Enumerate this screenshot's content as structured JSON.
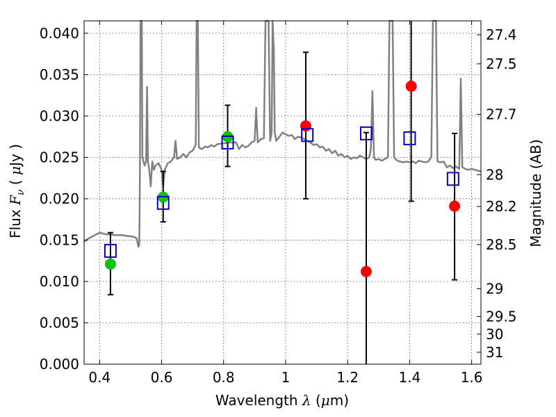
{
  "chart_data": {
    "type": "scatter",
    "xlabel": "Wavelength  λ (μm)",
    "ylabel": "Flux  Fν  ( μJy )",
    "y2label": "Magnitude (AB)",
    "xlim": [
      0.35,
      1.63
    ],
    "ylim": [
      0.0,
      0.0415
    ],
    "grid": true,
    "x_ticks": [
      {
        "value": 0.4,
        "label": "0.4"
      },
      {
        "value": 0.6,
        "label": "0.6"
      },
      {
        "value": 0.8,
        "label": "0.8"
      },
      {
        "value": 1.0,
        "label": "1"
      },
      {
        "value": 1.2,
        "label": "1.2"
      },
      {
        "value": 1.4,
        "label": "1.4"
      },
      {
        "value": 1.6,
        "label": "1.6"
      }
    ],
    "y_ticks": [
      {
        "value": 0.0,
        "label": "0.000"
      },
      {
        "value": 0.005,
        "label": "0.005"
      },
      {
        "value": 0.01,
        "label": "0.010"
      },
      {
        "value": 0.015,
        "label": "0.015"
      },
      {
        "value": 0.02,
        "label": "0.020"
      },
      {
        "value": 0.025,
        "label": "0.025"
      },
      {
        "value": 0.03,
        "label": "0.030"
      },
      {
        "value": 0.035,
        "label": "0.035"
      },
      {
        "value": 0.04,
        "label": "0.040"
      }
    ],
    "y2_ticks": [
      {
        "mag": 27.4,
        "label": "27.4"
      },
      {
        "mag": 27.5,
        "label": "27.5"
      },
      {
        "mag": 27.7,
        "label": "27.7"
      },
      {
        "mag": 28.0,
        "label": "28"
      },
      {
        "mag": 28.2,
        "label": "28.2"
      },
      {
        "mag": 28.5,
        "label": "28.5"
      },
      {
        "mag": 29.0,
        "label": "29"
      },
      {
        "mag": 29.5,
        "label": "29.5"
      },
      {
        "mag": 30.0,
        "label": "30"
      },
      {
        "mag": 31.0,
        "label": "31"
      }
    ],
    "series": [
      {
        "kind": "line",
        "color": "#808080",
        "points": [
          [
            0.35,
            0.0148
          ],
          [
            0.36,
            0.0151
          ],
          [
            0.37,
            0.0153
          ],
          [
            0.38,
            0.0155
          ],
          [
            0.39,
            0.0157
          ],
          [
            0.4,
            0.0159
          ],
          [
            0.41,
            0.0158
          ],
          [
            0.42,
            0.0157
          ],
          [
            0.43,
            0.0157
          ],
          [
            0.45,
            0.0156
          ],
          [
            0.47,
            0.0156
          ],
          [
            0.49,
            0.0155
          ],
          [
            0.51,
            0.0154
          ],
          [
            0.52,
            0.0152
          ],
          [
            0.525,
            0.0142
          ],
          [
            0.528,
            0.0145
          ],
          [
            0.53,
            0.0225
          ],
          [
            0.532,
            0.0415
          ],
          [
            0.536,
            0.0415
          ],
          [
            0.538,
            0.025
          ],
          [
            0.545,
            0.024
          ],
          [
            0.55,
            0.0245
          ],
          [
            0.553,
            0.0335
          ],
          [
            0.556,
            0.0245
          ],
          [
            0.56,
            0.0235
          ],
          [
            0.565,
            0.0215
          ],
          [
            0.57,
            0.0245
          ],
          [
            0.575,
            0.0235
          ],
          [
            0.58,
            0.024
          ],
          [
            0.59,
            0.0243
          ],
          [
            0.6,
            0.0235
          ],
          [
            0.605,
            0.0215
          ],
          [
            0.61,
            0.0235
          ],
          [
            0.62,
            0.0243
          ],
          [
            0.63,
            0.0245
          ],
          [
            0.64,
            0.025
          ],
          [
            0.645,
            0.027
          ],
          [
            0.65,
            0.0248
          ],
          [
            0.66,
            0.025
          ],
          [
            0.67,
            0.0254
          ],
          [
            0.68,
            0.025
          ],
          [
            0.69,
            0.0256
          ],
          [
            0.7,
            0.0258
          ],
          [
            0.71,
            0.0265
          ],
          [
            0.713,
            0.0415
          ],
          [
            0.717,
            0.0415
          ],
          [
            0.72,
            0.0262
          ],
          [
            0.73,
            0.026
          ],
          [
            0.74,
            0.0263
          ],
          [
            0.75,
            0.0262
          ],
          [
            0.76,
            0.0265
          ],
          [
            0.77,
            0.0263
          ],
          [
            0.78,
            0.0266
          ],
          [
            0.8,
            0.0267
          ],
          [
            0.82,
            0.0268
          ],
          [
            0.84,
            0.0268
          ],
          [
            0.85,
            0.026
          ],
          [
            0.86,
            0.0265
          ],
          [
            0.87,
            0.0262
          ],
          [
            0.88,
            0.0264
          ],
          [
            0.89,
            0.0268
          ],
          [
            0.9,
            0.027
          ],
          [
            0.905,
            0.031
          ],
          [
            0.91,
            0.0268
          ],
          [
            0.92,
            0.0272
          ],
          [
            0.93,
            0.0273
          ],
          [
            0.935,
            0.0415
          ],
          [
            0.945,
            0.0415
          ],
          [
            0.95,
            0.027
          ],
          [
            0.955,
            0.028
          ],
          [
            0.958,
            0.0415
          ],
          [
            0.962,
            0.038
          ],
          [
            0.965,
            0.028
          ],
          [
            0.97,
            0.027
          ],
          [
            0.98,
            0.0275
          ],
          [
            0.99,
            0.028
          ],
          [
            1.0,
            0.0278
          ],
          [
            1.01,
            0.0276
          ],
          [
            1.02,
            0.0277
          ],
          [
            1.03,
            0.0272
          ],
          [
            1.04,
            0.0275
          ],
          [
            1.05,
            0.0274
          ],
          [
            1.06,
            0.0272
          ],
          [
            1.07,
            0.027
          ],
          [
            1.08,
            0.0268
          ],
          [
            1.09,
            0.0265
          ],
          [
            1.1,
            0.0266
          ],
          [
            1.11,
            0.0262
          ],
          [
            1.12,
            0.0263
          ],
          [
            1.13,
            0.0258
          ],
          [
            1.14,
            0.026
          ],
          [
            1.15,
            0.0255
          ],
          [
            1.16,
            0.0258
          ],
          [
            1.17,
            0.0252
          ],
          [
            1.18,
            0.0254
          ],
          [
            1.19,
            0.025
          ],
          [
            1.2,
            0.0252
          ],
          [
            1.21,
            0.0248
          ],
          [
            1.22,
            0.025
          ],
          [
            1.23,
            0.0249
          ],
          [
            1.24,
            0.0252
          ],
          [
            1.25,
            0.025
          ],
          [
            1.26,
            0.0248
          ],
          [
            1.27,
            0.025
          ],
          [
            1.275,
            0.026
          ],
          [
            1.28,
            0.033
          ],
          [
            1.285,
            0.025
          ],
          [
            1.29,
            0.0247
          ],
          [
            1.3,
            0.0248
          ],
          [
            1.31,
            0.0246
          ],
          [
            1.32,
            0.0248
          ],
          [
            1.33,
            0.025
          ],
          [
            1.335,
            0.0415
          ],
          [
            1.345,
            0.0415
          ],
          [
            1.35,
            0.025
          ],
          [
            1.36,
            0.0246
          ],
          [
            1.37,
            0.0245
          ],
          [
            1.38,
            0.0244
          ],
          [
            1.39,
            0.0245
          ],
          [
            1.4,
            0.0244
          ],
          [
            1.41,
            0.0245
          ],
          [
            1.42,
            0.0243
          ],
          [
            1.43,
            0.0246
          ],
          [
            1.44,
            0.0245
          ],
          [
            1.45,
            0.0244
          ],
          [
            1.46,
            0.0245
          ],
          [
            1.47,
            0.025
          ],
          [
            1.475,
            0.0415
          ],
          [
            1.485,
            0.0415
          ],
          [
            1.49,
            0.0245
          ],
          [
            1.5,
            0.0244
          ],
          [
            1.51,
            0.0245
          ],
          [
            1.52,
            0.0238
          ],
          [
            1.53,
            0.024
          ],
          [
            1.54,
            0.0237
          ],
          [
            1.55,
            0.0239
          ],
          [
            1.56,
            0.0236
          ],
          [
            1.565,
            0.0345
          ],
          [
            1.57,
            0.0238
          ],
          [
            1.58,
            0.0236
          ],
          [
            1.59,
            0.0235
          ],
          [
            1.6,
            0.0236
          ],
          [
            1.61,
            0.0235
          ],
          [
            1.62,
            0.0234
          ],
          [
            1.63,
            0.0233
          ]
        ]
      },
      {
        "kind": "errorbar-markers",
        "marker": "circle",
        "color": "#0ec20e",
        "points": [
          {
            "x": 0.435,
            "y": 0.0121,
            "err_low": 0.0084,
            "err_high": 0.0159
          },
          {
            "x": 0.605,
            "y": 0.0202,
            "err_low": 0.0172,
            "err_high": 0.0233
          },
          {
            "x": 0.813,
            "y": 0.0275,
            "err_low": 0.0239,
            "err_high": 0.0313
          }
        ]
      },
      {
        "kind": "errorbar-markers",
        "marker": "circle",
        "color": "#ff0000",
        "points": [
          {
            "x": 1.065,
            "y": 0.0288,
            "err_low": 0.02,
            "err_high": 0.0377
          },
          {
            "x": 1.26,
            "y": 0.0112,
            "err_low": 0.0,
            "err_high": 0.028
          },
          {
            "x": 1.405,
            "y": 0.0336,
            "err_low": 0.0197,
            "err_high": 0.0415
          },
          {
            "x": 1.545,
            "y": 0.0191,
            "err_low": 0.0102,
            "err_high": 0.0279
          }
        ]
      },
      {
        "kind": "markers",
        "marker": "open-square",
        "color": "#0000cc",
        "points": [
          {
            "x": 0.435,
            "y": 0.0137
          },
          {
            "x": 0.605,
            "y": 0.0195
          },
          {
            "x": 0.813,
            "y": 0.0268
          },
          {
            "x": 1.07,
            "y": 0.0277
          },
          {
            "x": 1.26,
            "y": 0.0279
          },
          {
            "x": 1.4,
            "y": 0.0273
          },
          {
            "x": 1.54,
            "y": 0.0224
          }
        ]
      }
    ]
  }
}
